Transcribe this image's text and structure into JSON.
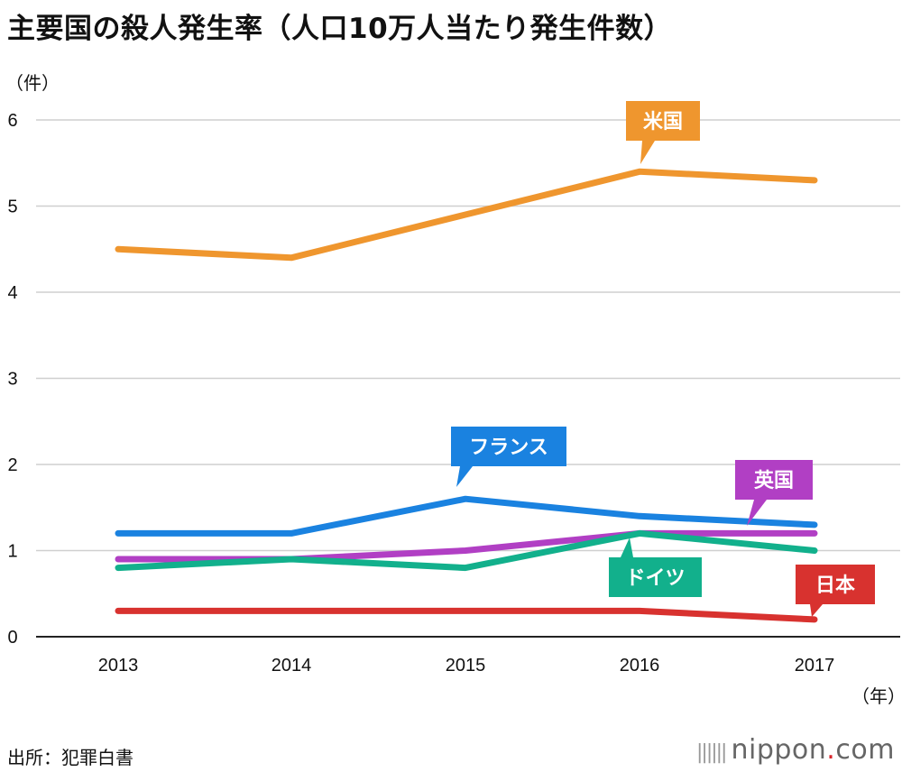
{
  "chart_data": {
    "type": "line",
    "title": "主要国の殺人発生率（人口10万人当たり発生件数）",
    "ylabel": "（件）",
    "xlabel": "（年）",
    "categories": [
      "2013",
      "2014",
      "2015",
      "2016",
      "2017"
    ],
    "y_ticks": [
      "0",
      "1",
      "2",
      "3",
      "4",
      "5",
      "6"
    ],
    "ylim": [
      0,
      6
    ],
    "grid": true,
    "series": [
      {
        "name": "米国",
        "color": "#ef962e",
        "values": [
          4.5,
          4.4,
          4.9,
          5.4,
          5.3
        ]
      },
      {
        "name": "フランス",
        "color": "#1a82e0",
        "values": [
          1.2,
          1.2,
          1.6,
          1.4,
          1.3
        ]
      },
      {
        "name": "英国",
        "color": "#b13fc4",
        "values": [
          0.9,
          0.9,
          1.0,
          1.2,
          1.2
        ]
      },
      {
        "name": "ドイツ",
        "color": "#12b08c",
        "values": [
          0.8,
          0.9,
          0.8,
          1.2,
          1.0
        ]
      },
      {
        "name": "日本",
        "color": "#d8322f",
        "values": [
          0.3,
          0.3,
          0.3,
          0.3,
          0.2
        ]
      }
    ]
  },
  "footer": {
    "source": "出所：犯罪白書",
    "brand_main": "nippon",
    "brand_dot": ".",
    "brand_tld": "com"
  }
}
